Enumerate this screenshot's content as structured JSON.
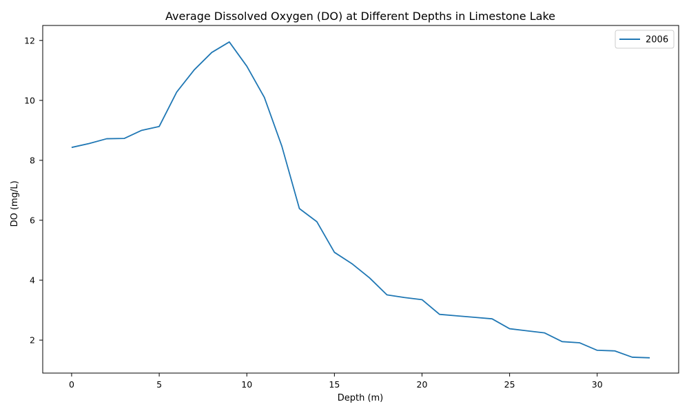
{
  "chart_data": {
    "type": "line",
    "title": "Average Dissolved Oxygen (DO) at Different Depths in Limestone Lake",
    "xlabel": "Depth (m)",
    "ylabel": "DO (mg/L)",
    "xlim": [
      -1.65,
      34.65
    ],
    "ylim": [
      0.9,
      12.5
    ],
    "xticks": [
      0,
      5,
      10,
      15,
      20,
      25,
      30
    ],
    "yticks": [
      2,
      4,
      6,
      8,
      10,
      12
    ],
    "grid": false,
    "legend_position": "upper right",
    "series": [
      {
        "name": "2006",
        "color": "#1f77b4",
        "x": [
          0,
          1,
          2,
          3,
          4,
          5,
          6,
          7,
          8,
          9,
          10,
          11,
          12,
          13,
          14,
          15,
          16,
          17,
          18,
          19,
          20,
          21,
          22,
          23,
          24,
          25,
          26,
          27,
          28,
          29,
          30,
          31,
          32,
          33
        ],
        "y": [
          8.43,
          8.56,
          8.72,
          8.73,
          9.0,
          9.13,
          10.28,
          11.02,
          11.6,
          11.95,
          11.14,
          10.1,
          8.47,
          6.39,
          5.95,
          4.93,
          4.55,
          4.08,
          3.51,
          3.42,
          3.35,
          2.86,
          2.81,
          2.76,
          2.71,
          2.38,
          2.31,
          2.24,
          1.95,
          1.91,
          1.66,
          1.64,
          1.43,
          1.41
        ]
      }
    ]
  }
}
